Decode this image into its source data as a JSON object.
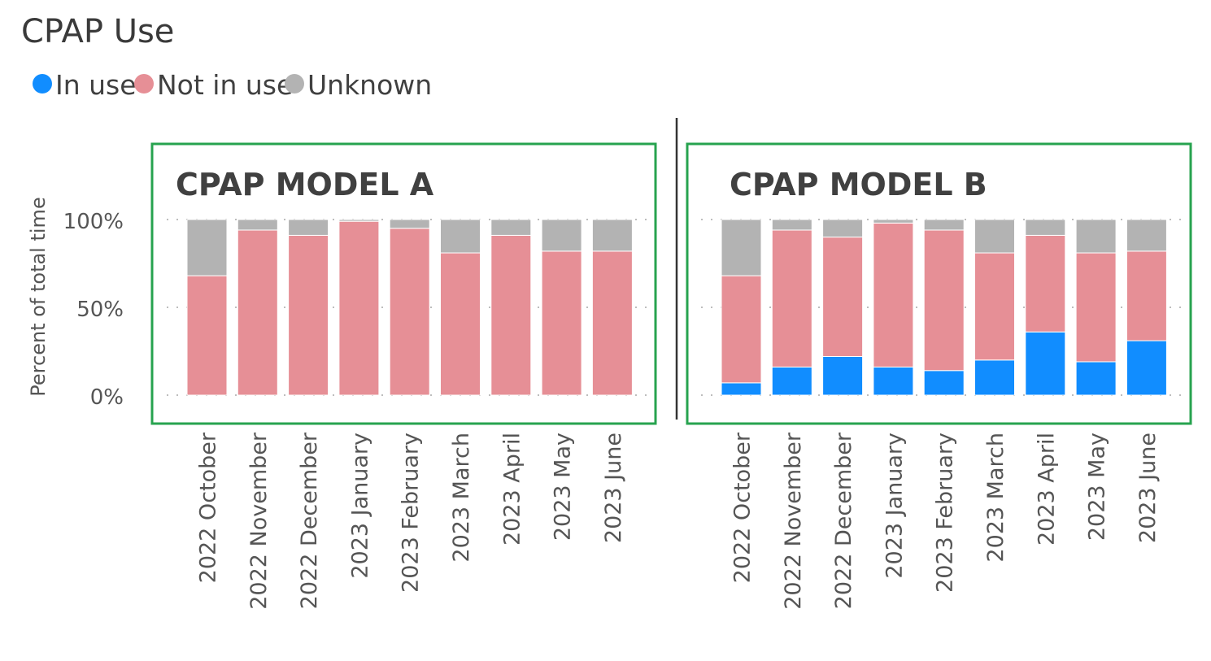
{
  "title": "CPAP Use",
  "legend": [
    {
      "label": "In use",
      "color": "#118dff"
    },
    {
      "label": "Not in use",
      "color": "#e68f96"
    },
    {
      "label": "Unknown",
      "color": "#b3b3b3"
    }
  ],
  "y_axis": {
    "label": "Percent of total time",
    "ticks": [
      "100%",
      "50%",
      "0%"
    ]
  },
  "chart_data": [
    {
      "type": "bar",
      "stacked": true,
      "title": "CPAP MODEL A",
      "categories": [
        "2022 October",
        "2022 November",
        "2022 December",
        "2023 January",
        "2023 February",
        "2023 March",
        "2023 April",
        "2023 May",
        "2023 June"
      ],
      "ylim": [
        0,
        100
      ],
      "series": [
        {
          "name": "In use",
          "values": [
            0,
            0,
            0,
            0,
            0,
            0,
            0,
            0,
            0
          ]
        },
        {
          "name": "Not in use",
          "values": [
            68,
            94,
            91,
            99,
            95,
            81,
            91,
            82,
            82
          ]
        },
        {
          "name": "Unknown",
          "values": [
            32,
            6,
            9,
            1,
            5,
            19,
            9,
            18,
            18
          ]
        }
      ]
    },
    {
      "type": "bar",
      "stacked": true,
      "title": "CPAP MODEL B",
      "categories": [
        "2022 October",
        "2022 November",
        "2022 December",
        "2023 January",
        "2023 February",
        "2023 March",
        "2023 April",
        "2023 May",
        "2023 June"
      ],
      "ylim": [
        0,
        100
      ],
      "series": [
        {
          "name": "In use",
          "values": [
            7,
            16,
            22,
            16,
            14,
            20,
            36,
            19,
            31
          ]
        },
        {
          "name": "Not in use",
          "values": [
            61,
            78,
            68,
            82,
            80,
            61,
            55,
            62,
            51
          ]
        },
        {
          "name": "Unknown",
          "values": [
            32,
            6,
            10,
            2,
            6,
            19,
            9,
            19,
            18
          ]
        }
      ]
    }
  ]
}
